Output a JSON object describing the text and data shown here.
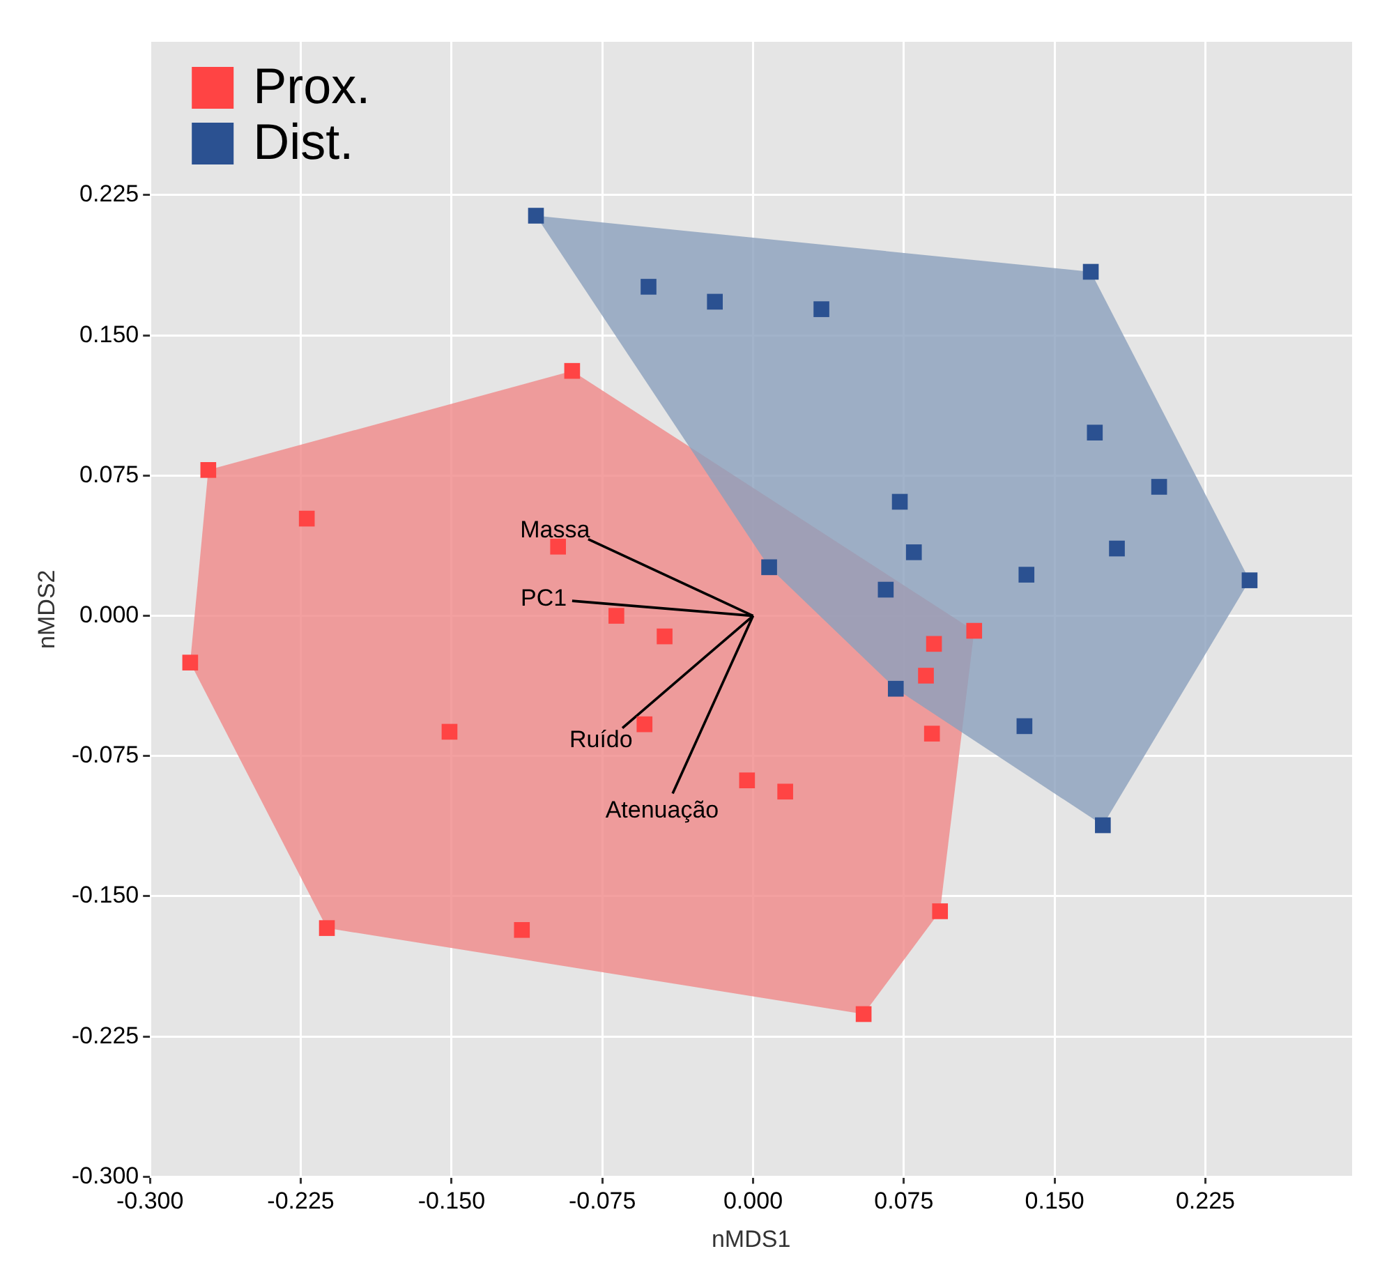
{
  "chart_data": {
    "type": "scatter",
    "xlabel": "nMDS1",
    "ylabel": "nMDS2",
    "xlim": [
      -0.3,
      0.298
    ],
    "ylim": [
      -0.3,
      0.307
    ],
    "xticks": [
      {
        "value": -0.3,
        "label": "-0.300"
      },
      {
        "value": -0.225,
        "label": "-0.225"
      },
      {
        "value": -0.15,
        "label": "-0.150"
      },
      {
        "value": -0.075,
        "label": "-0.075"
      },
      {
        "value": 0,
        "label": "0.000"
      },
      {
        "value": 0.075,
        "label": "0.075"
      },
      {
        "value": 0.15,
        "label": "0.150"
      },
      {
        "value": 0.225,
        "label": "0.225"
      }
    ],
    "yticks": [
      {
        "value": -0.3,
        "label": "-0.300"
      },
      {
        "value": -0.225,
        "label": "-0.225"
      },
      {
        "value": -0.15,
        "label": "-0.150"
      },
      {
        "value": -0.075,
        "label": "-0.075"
      },
      {
        "value": 0,
        "label": "0.000"
      },
      {
        "value": 0.075,
        "label": "0.075"
      },
      {
        "value": 0.15,
        "label": "0.150"
      },
      {
        "value": 0.225,
        "label": "0.225"
      }
    ],
    "grid": true,
    "legend": "top left",
    "series": [
      {
        "type": "area",
        "color": "#f08888",
        "x": [
          -0.271,
          -0.09,
          0.11,
          0.093,
          0.055,
          -0.212,
          -0.28
        ],
        "values": [
          0.078,
          0.131,
          -0.008,
          -0.158,
          -0.213,
          -0.167,
          -0.025
        ]
      },
      {
        "type": "area",
        "color": "#8ba0bd",
        "x": [
          -0.108,
          0.168,
          0.247,
          0.174,
          0.071,
          0.008
        ],
        "values": [
          0.214,
          0.184,
          0.019,
          -0.112,
          -0.039,
          0.026
        ]
      },
      {
        "name": "Prox.",
        "color": "#ff4444",
        "marker": "square",
        "x": [
          -0.271,
          -0.222,
          -0.28,
          -0.09,
          -0.097,
          -0.068,
          -0.044,
          -0.054,
          -0.151,
          -0.003,
          0.016,
          -0.212,
          -0.115,
          0.055,
          0.093,
          0.089,
          0.086,
          0.09,
          0.11
        ],
        "values": [
          0.078,
          0.052,
          -0.025,
          0.131,
          0.037,
          0,
          -0.011,
          -0.058,
          -0.062,
          -0.088,
          -0.094,
          -0.167,
          -0.168,
          -0.213,
          -0.158,
          -0.063,
          -0.032,
          -0.015,
          -0.008
        ]
      },
      {
        "name": "Dist.",
        "color": "#2b5191",
        "marker": "square",
        "x": [
          -0.108,
          -0.052,
          -0.019,
          0.034,
          0.168,
          0.17,
          0.202,
          0.181,
          0.247,
          0.136,
          0.073,
          0.08,
          0.066,
          0.008,
          0.071,
          0.135,
          0.174
        ],
        "values": [
          0.214,
          0.176,
          0.168,
          0.164,
          0.184,
          0.098,
          0.069,
          0.036,
          0.019,
          0.022,
          0.061,
          0.034,
          0.014,
          0.026,
          -0.039,
          -0.059,
          -0.112
        ]
      },
      {
        "type": "line",
        "name": "Massa",
        "color": "#000000",
        "x": [
          0,
          -0.082
        ],
        "values": [
          0,
          0.041
        ]
      },
      {
        "type": "line",
        "name": "PC1",
        "color": "#000000",
        "x": [
          0,
          -0.09
        ],
        "values": [
          0,
          0.008
        ]
      },
      {
        "type": "line",
        "name": "Ruído",
        "color": "#000000",
        "x": [
          0,
          -0.065
        ],
        "values": [
          0,
          -0.06
        ]
      },
      {
        "type": "line",
        "name": "Atenuação",
        "color": "#000000",
        "x": [
          0,
          -0.04
        ],
        "values": [
          0,
          -0.095
        ]
      }
    ]
  }
}
